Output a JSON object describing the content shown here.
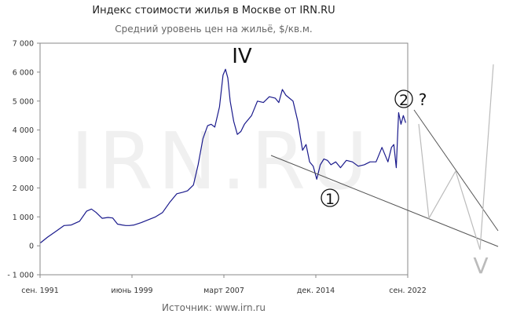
{
  "chart_data": {
    "type": "line",
    "title": "Индекс стоимости жилья в Москве от IRN.RU",
    "subtitle": "Средний уровень цен на жильё, $/кв.м.",
    "source": "Источник: www.irn.ru",
    "watermark": "IRN.RU",
    "xlabel": "",
    "ylabel": "",
    "ylim": [
      -1000,
      7000
    ],
    "xlim": [
      1991.67,
      2022.67
    ],
    "yticks": [
      {
        "value": -1000,
        "label": "- 1 000"
      },
      {
        "value": 0,
        "label": "0"
      },
      {
        "value": 1000,
        "label": "1 000"
      },
      {
        "value": 2000,
        "label": "2 000"
      },
      {
        "value": 3000,
        "label": "3 000"
      },
      {
        "value": 4000,
        "label": "4 000"
      },
      {
        "value": 5000,
        "label": "5 000"
      },
      {
        "value": 6000,
        "label": "6 000"
      },
      {
        "value": 7000,
        "label": "7 000"
      }
    ],
    "xticks": [
      {
        "value": 1991.67,
        "label": "сен. 1991"
      },
      {
        "value": 1999.42,
        "label": "июнь 1999"
      },
      {
        "value": 2007.17,
        "label": "март 2007"
      },
      {
        "value": 2014.92,
        "label": "дек. 2014"
      },
      {
        "value": 2022.67,
        "label": "сен. 2022"
      }
    ],
    "grid": false,
    "line_color": "#1a1a8c",
    "series": [
      {
        "name": "",
        "x": [
          1991.7,
          1992.3,
          1993.0,
          1993.7,
          1994.3,
          1995.0,
          1995.6,
          1996.0,
          1996.4,
          1996.9,
          1997.4,
          1997.8,
          1998.2,
          1998.6,
          1998.9,
          1999.2,
          1999.6,
          2000.2,
          2000.8,
          2001.4,
          2002.0,
          2002.6,
          2003.2,
          2003.7,
          2004.1,
          2004.6,
          2005.0,
          2005.4,
          2005.8,
          2006.1,
          2006.4,
          2006.8,
          2007.1,
          2007.3,
          2007.5,
          2007.7,
          2008.0,
          2008.3,
          2008.6,
          2008.9,
          2009.2,
          2009.5,
          2010.0,
          2010.5,
          2011.0,
          2011.5,
          2011.8,
          2012.1,
          2012.4,
          2012.7,
          2013.0,
          2013.4,
          2013.8,
          2014.1,
          2014.4,
          2014.7,
          2015.0,
          2015.3,
          2015.6,
          2015.9,
          2016.2,
          2016.6,
          2017.0,
          2017.5,
          2018.0,
          2018.5,
          2019.0,
          2019.5,
          2020.0,
          2020.5,
          2021.0,
          2021.3,
          2021.5,
          2021.7,
          2021.9,
          2022.1,
          2022.3,
          2022.5
        ],
        "values": [
          100,
          300,
          500,
          700,
          720,
          850,
          1200,
          1270,
          1150,
          950,
          980,
          960,
          750,
          720,
          700,
          700,
          720,
          800,
          900,
          1000,
          1150,
          1500,
          1800,
          1850,
          1900,
          2100,
          2800,
          3700,
          4150,
          4200,
          4100,
          4800,
          5900,
          6100,
          5800,
          5000,
          4300,
          3850,
          3950,
          4200,
          4350,
          4500,
          5000,
          4950,
          5150,
          5100,
          4950,
          5400,
          5200,
          5100,
          5000,
          4300,
          3300,
          3500,
          2900,
          2750,
          2300,
          2800,
          3000,
          2950,
          2800,
          2900,
          2700,
          2950,
          2900,
          2750,
          2800,
          2900,
          2900,
          3400,
          2900,
          3400,
          3500,
          2700,
          4600,
          4200,
          4500,
          4250
        ]
      }
    ],
    "annotations": {
      "wave_iv": "IV",
      "wave_1": "1",
      "wave_2": "2",
      "question": "?",
      "wave_v": "V"
    }
  }
}
